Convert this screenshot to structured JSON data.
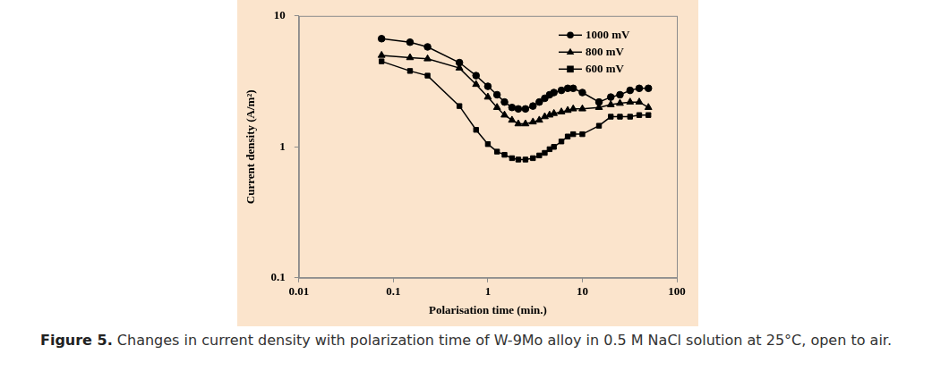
{
  "chart_data": {
    "type": "line",
    "x_label": "Polarisation time (min.)",
    "y_label": "Current density (A/m²)",
    "caption_label": "Figure 5.",
    "caption": "Changes in current density with polarization time of W-9Mo alloy in 0.5 M NaCl solution at 25°C, open to air.",
    "x": [
      0.075,
      0.15,
      0.23,
      0.5,
      0.75,
      1,
      1.25,
      1.5,
      1.8,
      2.1,
      2.5,
      3,
      3.5,
      4,
      4.5,
      5,
      6,
      7,
      8,
      10,
      15,
      20,
      25,
      32,
      40,
      50
    ],
    "series": [
      {
        "name": "1000 mV",
        "color": "#000000",
        "marker": "circle",
        "values": [
          6.7,
          6.3,
          5.8,
          4.4,
          3.5,
          2.9,
          2.5,
          2.2,
          2.0,
          1.95,
          1.95,
          2.05,
          2.2,
          2.35,
          2.5,
          2.6,
          2.7,
          2.8,
          2.8,
          2.6,
          2.2,
          2.4,
          2.5,
          2.7,
          2.8,
          2.8
        ]
      },
      {
        "name": "800 mV",
        "color": "#000000",
        "marker": "triangle",
        "values": [
          5.0,
          4.8,
          4.7,
          4.0,
          3.0,
          2.4,
          2.0,
          1.75,
          1.6,
          1.5,
          1.5,
          1.55,
          1.6,
          1.7,
          1.75,
          1.8,
          1.85,
          1.9,
          1.95,
          1.95,
          2.0,
          2.1,
          2.15,
          2.2,
          2.2,
          2.0
        ]
      },
      {
        "name": "600 mV",
        "color": "#000000",
        "marker": "square",
        "values": [
          4.5,
          3.8,
          3.5,
          2.05,
          1.35,
          1.05,
          0.92,
          0.87,
          0.82,
          0.8,
          0.8,
          0.82,
          0.86,
          0.9,
          0.96,
          1.0,
          1.1,
          1.2,
          1.25,
          1.25,
          1.45,
          1.7,
          1.7,
          1.7,
          1.75,
          1.75
        ]
      }
    ],
    "xlim": [
      0.01,
      100
    ],
    "xticks": [
      0.01,
      0.1,
      1,
      10,
      100
    ],
    "ylim": [
      0.1,
      10
    ],
    "yticks": [
      0.1,
      1,
      10
    ],
    "log": true,
    "grid": false,
    "legend": "upper right"
  }
}
